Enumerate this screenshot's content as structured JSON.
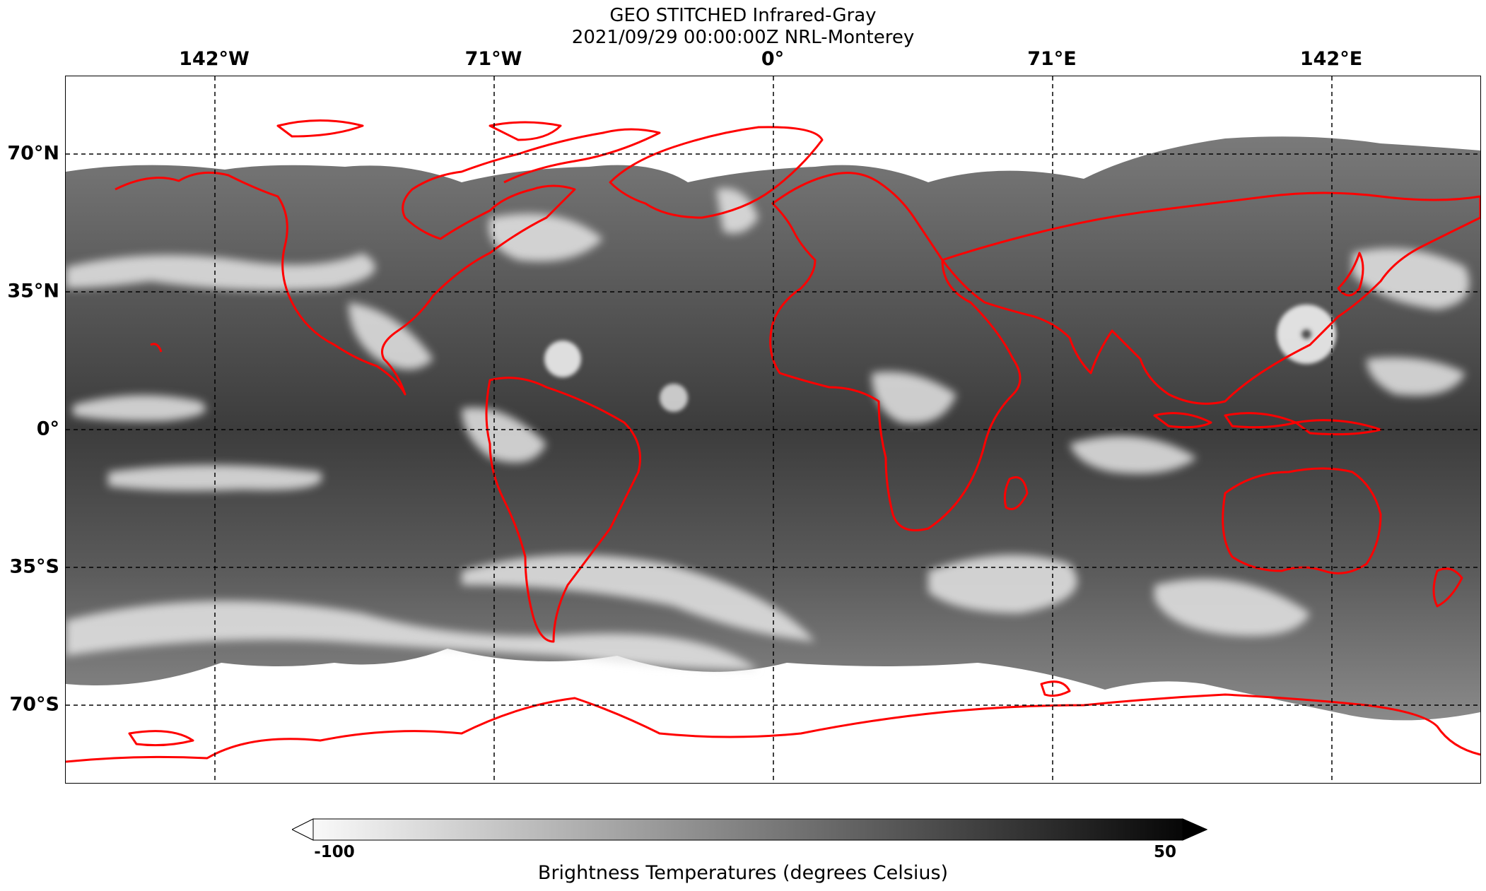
{
  "title": {
    "line1": "GEO STITCHED Infrared-Gray",
    "line2": "2021/09/29 00:00:00Z NRL-Monterey"
  },
  "longitude_labels": [
    "142°W",
    "71°W",
    "0°",
    "71°E",
    "142°E"
  ],
  "latitude_labels": [
    "70°N",
    "35°N",
    "0°",
    "35°S",
    "70°S"
  ],
  "colorbar": {
    "min_label": "-100",
    "max_label": "50",
    "label": "Brightness Temperatures (degrees Celsius)",
    "colormap": "grayscale, white (cold) to black (warm)"
  },
  "overlay": {
    "coastline_color": "#ff0000",
    "gridline_style": "dashed black"
  }
}
